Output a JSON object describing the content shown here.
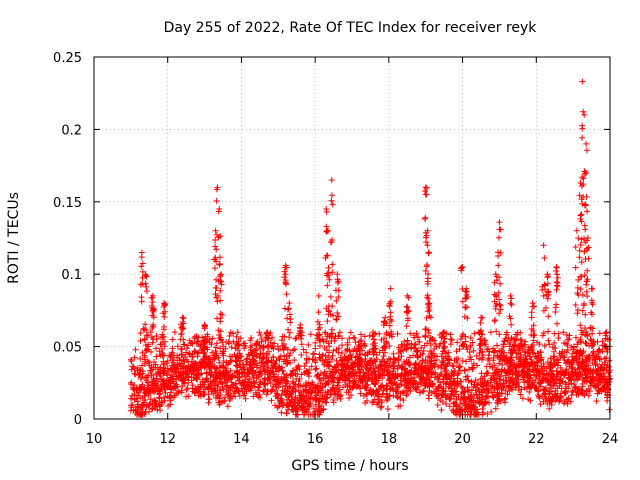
{
  "chart_data": {
    "type": "scatter",
    "title": "Day 255 of 2022, Rate Of TEC Index for receiver reyk",
    "xlabel": "GPS time / hours",
    "ylabel": "ROTI / TECUs",
    "xlim": [
      10,
      24
    ],
    "ylim": [
      0,
      0.25
    ],
    "xticks": [
      "10",
      "12",
      "14",
      "16",
      "18",
      "20",
      "22",
      "24"
    ],
    "yticks": [
      "0",
      "0.05",
      "0.1",
      "0.15",
      "0.2",
      "0.25"
    ],
    "grid": true,
    "marker": "+",
    "color": "#ff0000",
    "series": [
      {
        "name": "ROTI",
        "base_level": 0.02,
        "peaks": [
          [
            11.3,
            0.115
          ],
          [
            11.4,
            0.1
          ],
          [
            11.6,
            0.085
          ],
          [
            11.9,
            0.08
          ],
          [
            12.4,
            0.07
          ],
          [
            13.0,
            0.065
          ],
          [
            13.35,
            0.16
          ],
          [
            13.4,
            0.145
          ],
          [
            13.3,
            0.13
          ],
          [
            13.45,
            0.1
          ],
          [
            13.9,
            0.06
          ],
          [
            14.7,
            0.06
          ],
          [
            15.2,
            0.106
          ],
          [
            15.3,
            0.08
          ],
          [
            15.6,
            0.065
          ],
          [
            16.1,
            0.085
          ],
          [
            16.3,
            0.145
          ],
          [
            16.35,
            0.13
          ],
          [
            16.45,
            0.165
          ],
          [
            16.6,
            0.1
          ],
          [
            17.2,
            0.05
          ],
          [
            17.6,
            0.055
          ],
          [
            17.9,
            0.07
          ],
          [
            18.05,
            0.09
          ],
          [
            18.5,
            0.085
          ],
          [
            19.0,
            0.16
          ],
          [
            19.05,
            0.13
          ],
          [
            19.1,
            0.08
          ],
          [
            19.5,
            0.06
          ],
          [
            20.0,
            0.105
          ],
          [
            20.1,
            0.09
          ],
          [
            20.5,
            0.07
          ],
          [
            20.9,
            0.1
          ],
          [
            21.0,
            0.136
          ],
          [
            21.3,
            0.085
          ],
          [
            21.9,
            0.08
          ],
          [
            22.2,
            0.12
          ],
          [
            22.3,
            0.1
          ],
          [
            22.55,
            0.105
          ],
          [
            23.1,
            0.13
          ],
          [
            23.2,
            0.163
          ],
          [
            23.25,
            0.233
          ],
          [
            23.3,
            0.21
          ],
          [
            23.35,
            0.19
          ],
          [
            23.4,
            0.125
          ],
          [
            23.5,
            0.09
          ],
          [
            23.9,
            0.06
          ]
        ]
      }
    ]
  }
}
